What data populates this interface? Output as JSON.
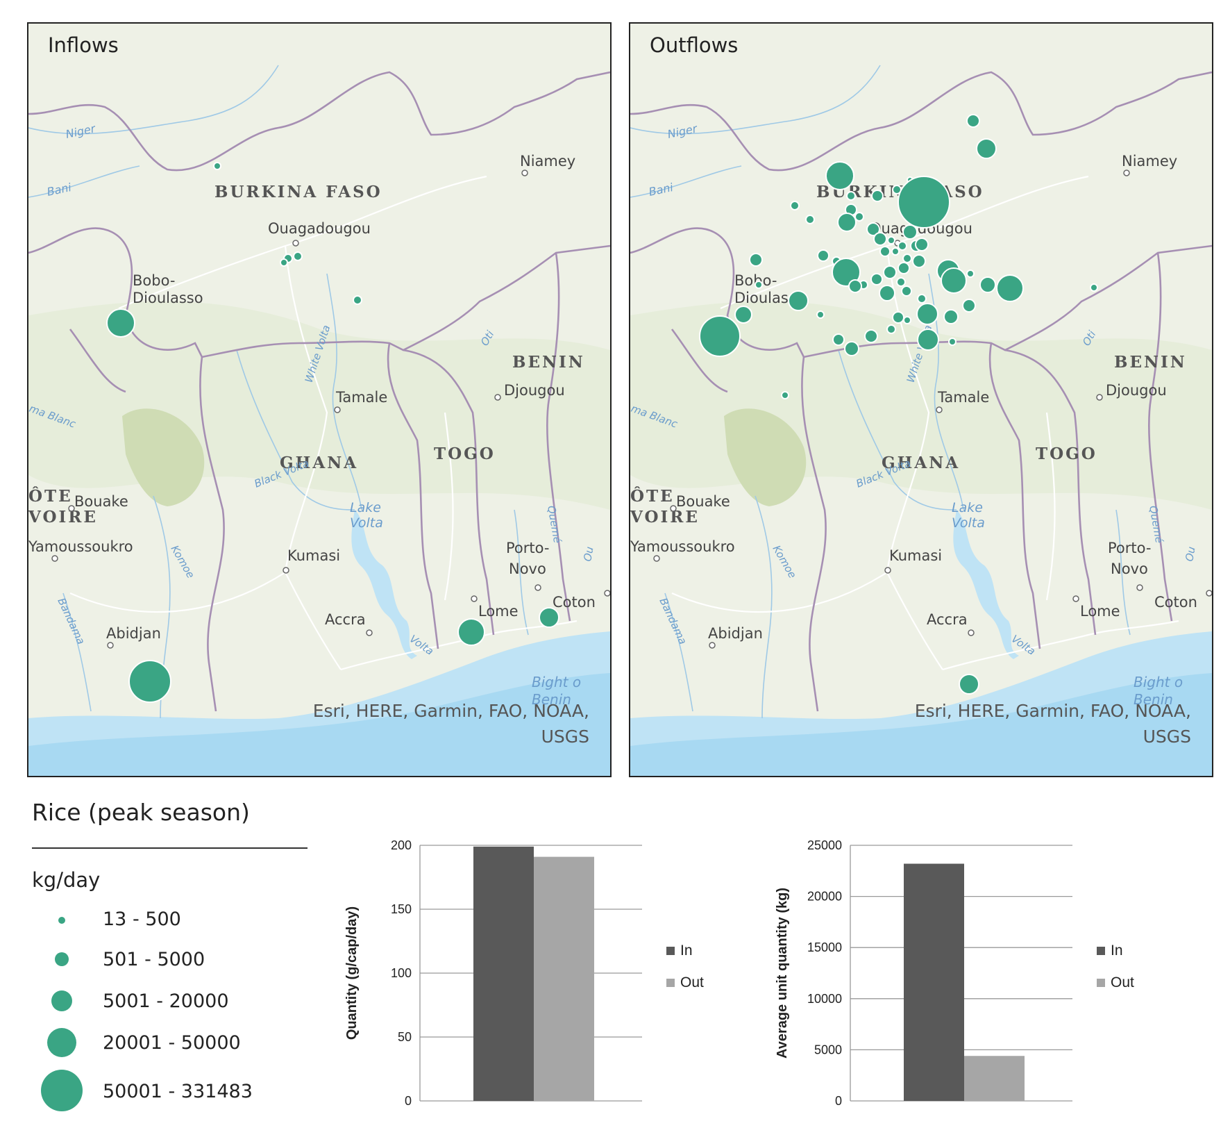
{
  "colors": {
    "symbol": "#3aa584",
    "in_bar": "#595959",
    "out_bar": "#a6a6a6",
    "water": "#bfe3f5",
    "land": "#eef1e6",
    "border": "#a68fb3",
    "road": "#ffffff"
  },
  "maps": [
    {
      "title": "Inflows",
      "attribution_line1": "Esri, HERE, Garmin, FAO, NOAA,",
      "attribution_line2": "USGS",
      "symbol_classes": [
        "13 - 500",
        "50001 - 331483",
        "20001 - 50000",
        "501 - 5000"
      ]
    },
    {
      "title": "Outflows",
      "attribution_line1": "Esri, HERE, Garmin, FAO, NOAA,",
      "attribution_line2": "USGS"
    }
  ],
  "basemap_labels": {
    "countries": [
      "BURKINA FASO",
      "GHANA",
      "TOGO",
      "BENIN",
      "ÔTE",
      "VOIRE"
    ],
    "cities": [
      "Niamey",
      "Ouagadougou",
      "Bobo-",
      "Dioulasso",
      "Tamale",
      "Djougou",
      "Bouake",
      "Yamoussoukro",
      "Kumasi",
      "Accra",
      "Lome",
      "Porto-",
      "Novo",
      "Coton",
      "Abidjan"
    ],
    "water": [
      "Niger",
      "Bani",
      "White Volta",
      "Black Volta",
      "Lake",
      "Volta",
      "Oti",
      "Komoe",
      "Bandama",
      "Quemé",
      "Volta",
      "Bight o",
      "Benin",
      "ma Blanc",
      "Ou"
    ]
  },
  "legend": {
    "title": "Rice (peak season)",
    "unit": "kg/day",
    "classes": [
      "13 - 500",
      "501 - 5000",
      "5001 - 20000",
      "20001 - 50000",
      "50001 - 331483"
    ]
  },
  "chart_data": [
    {
      "type": "bar",
      "ylabel": "Quantity (g/cap/day)",
      "ylim": [
        0,
        200
      ],
      "yticks": [
        "0",
        "50",
        "100",
        "150",
        "200"
      ],
      "series": [
        {
          "name": "In",
          "values": [
            199
          ]
        },
        {
          "name": "Out",
          "values": [
            191
          ]
        }
      ],
      "legend_position": "right"
    },
    {
      "type": "bar",
      "ylabel": "Average unit quantity (kg)",
      "ylim": [
        0,
        25000
      ],
      "yticks": [
        "0",
        "5000",
        "10000",
        "15000",
        "20000",
        "25000"
      ],
      "series": [
        {
          "name": "In",
          "values": [
            23200
          ]
        },
        {
          "name": "Out",
          "values": [
            4400
          ]
        }
      ],
      "legend_position": "right"
    }
  ]
}
